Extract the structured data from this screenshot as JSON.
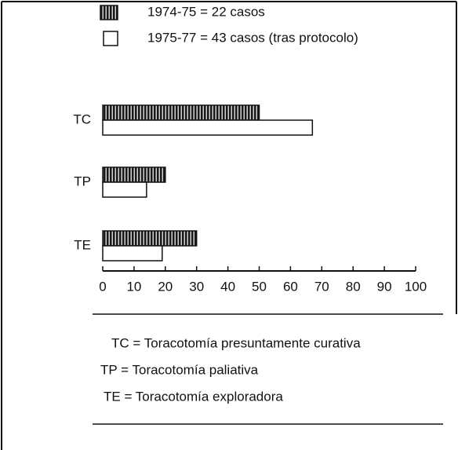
{
  "chart_data": {
    "type": "hbar",
    "categories": [
      "TC",
      "TP",
      "TE"
    ],
    "series": [
      {
        "name": "1974-75 = 22 casos",
        "color": "#1a1a1a",
        "pattern": "vertical-stripes",
        "values": [
          50,
          20,
          30
        ]
      },
      {
        "name": "1975-77 = 43 casos (tras protocolo)",
        "color": "#ffffff",
        "values": [
          67,
          14,
          19
        ]
      }
    ],
    "xlim": [
      0,
      100
    ],
    "xticks": [
      0,
      10,
      20,
      30,
      40,
      50,
      60,
      70,
      80,
      90,
      100
    ],
    "legend": "top",
    "annotations": [
      "TC = Toracotomía presuntamente curativa",
      "TP = Toracotomía paliativa",
      "TE = Toracotomía exploradora"
    ]
  }
}
